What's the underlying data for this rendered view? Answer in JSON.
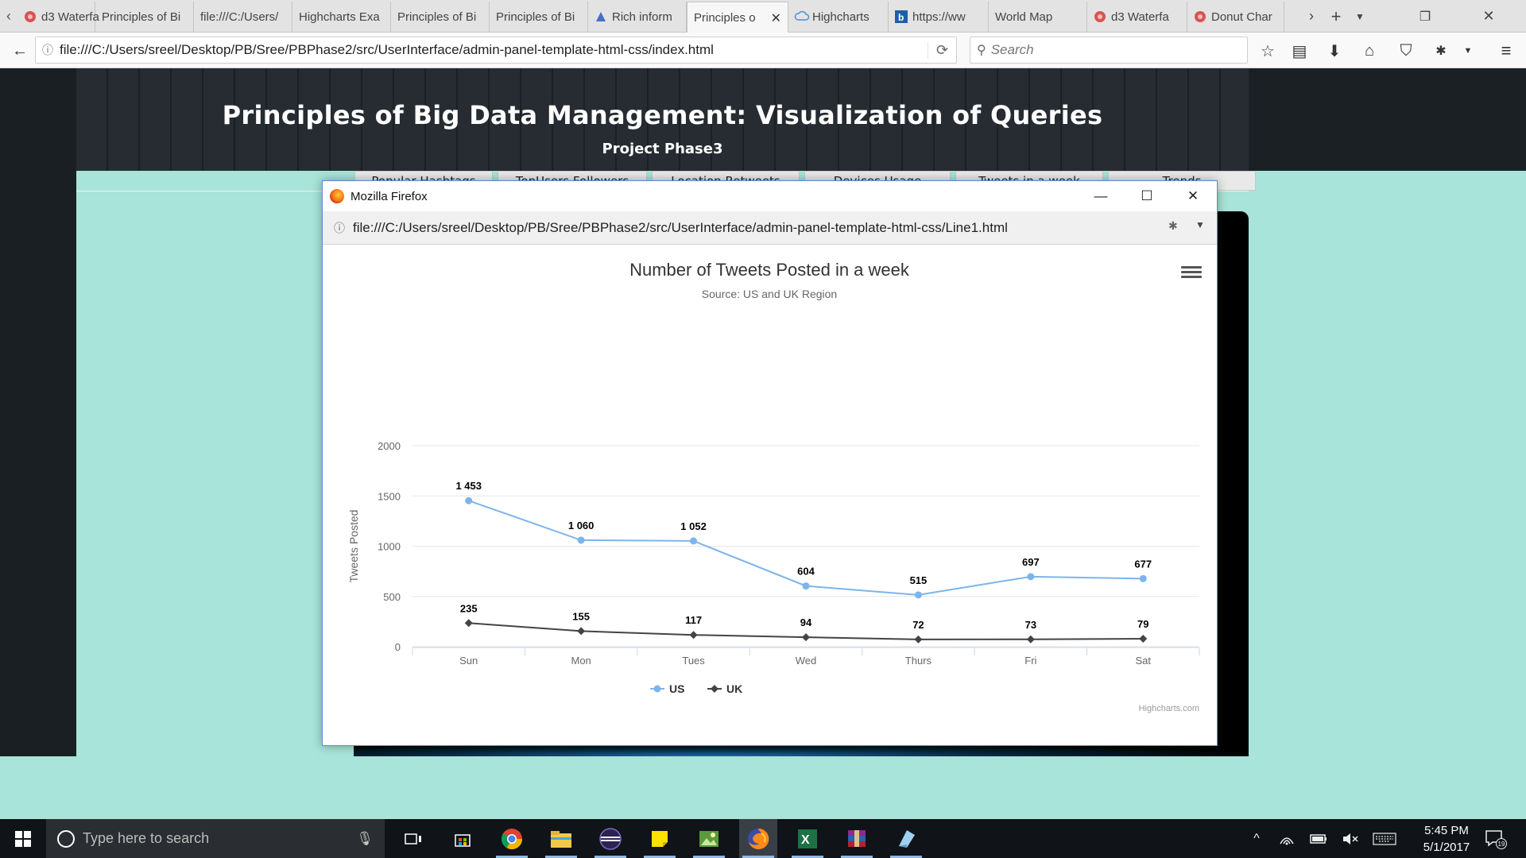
{
  "browser": {
    "tabs": [
      {
        "title": "d3 Waterfa",
        "icon": "d3-icon",
        "active": false
      },
      {
        "title": "Principles of Bi",
        "icon": "",
        "active": false
      },
      {
        "title": "file:///C:/Users/",
        "icon": "",
        "active": false
      },
      {
        "title": "Highcharts Exa",
        "icon": "",
        "active": false
      },
      {
        "title": "Principles of Bi",
        "icon": "",
        "active": false
      },
      {
        "title": "Principles of Bi",
        "icon": "",
        "active": false
      },
      {
        "title": "Rich inform",
        "icon": "google-icon",
        "active": false
      },
      {
        "title": "Principles o",
        "icon": "",
        "active": true
      },
      {
        "title": "Highcharts",
        "icon": "cloud-icon",
        "active": false
      },
      {
        "title": "https://ww",
        "icon": "bing-icon",
        "active": false
      },
      {
        "title": "World Map",
        "icon": "",
        "active": false
      },
      {
        "title": "d3 Waterfa",
        "icon": "d3-icon",
        "active": false
      },
      {
        "title": "Donut Char",
        "icon": "d3-icon",
        "active": false
      }
    ],
    "url": "file:///C:/Users/sreel/Desktop/PB/Sree/PBPhase2/src/UserInterface/admin-panel-template-html-css/index.html",
    "search_placeholder": "Search"
  },
  "page": {
    "title": "Principles of Big Data Management: Visualization of Queries",
    "subtitle": "Project Phase3",
    "tabs": [
      "Popular Hashtags",
      "TopUsers Followers",
      "Location Retweets",
      "Devices Usage",
      "Tweets in a week",
      "Trends"
    ]
  },
  "popup": {
    "window_title": "Mozilla Firefox",
    "url": "file:///C:/Users/sreel/Desktop/PB/Sree/PBPhase2/src/UserInterface/admin-panel-template-html-css/Line1.html"
  },
  "chart_data": {
    "type": "line",
    "title": "Number of Tweets Posted in a week",
    "subtitle": "Source: US and UK Region",
    "xlabel": "",
    "ylabel": "Tweets Posted",
    "categories": [
      "Sun",
      "Mon",
      "Tues",
      "Wed",
      "Thurs",
      "Fri",
      "Sat"
    ],
    "ylim": [
      0,
      2000
    ],
    "yticks": [
      0,
      500,
      1000,
      1500,
      2000
    ],
    "grid": true,
    "legend_position": "bottom-center",
    "credits": "Highcharts.com",
    "series": [
      {
        "name": "US",
        "values": [
          1453,
          1060,
          1052,
          604,
          515,
          697,
          677
        ],
        "labels": [
          "1 453",
          "1 060",
          "1 052",
          "604",
          "515",
          "697",
          "677"
        ],
        "color": "#7cb5ec",
        "marker": "circle"
      },
      {
        "name": "UK",
        "values": [
          235,
          155,
          117,
          94,
          72,
          73,
          79
        ],
        "labels": [
          "235",
          "155",
          "117",
          "94",
          "72",
          "73",
          "79"
        ],
        "color": "#434348",
        "marker": "diamond"
      }
    ]
  },
  "taskbar": {
    "search_placeholder": "Type here to search",
    "time": "5:45 PM",
    "date": "5/1/2017",
    "notification_count": "19"
  }
}
